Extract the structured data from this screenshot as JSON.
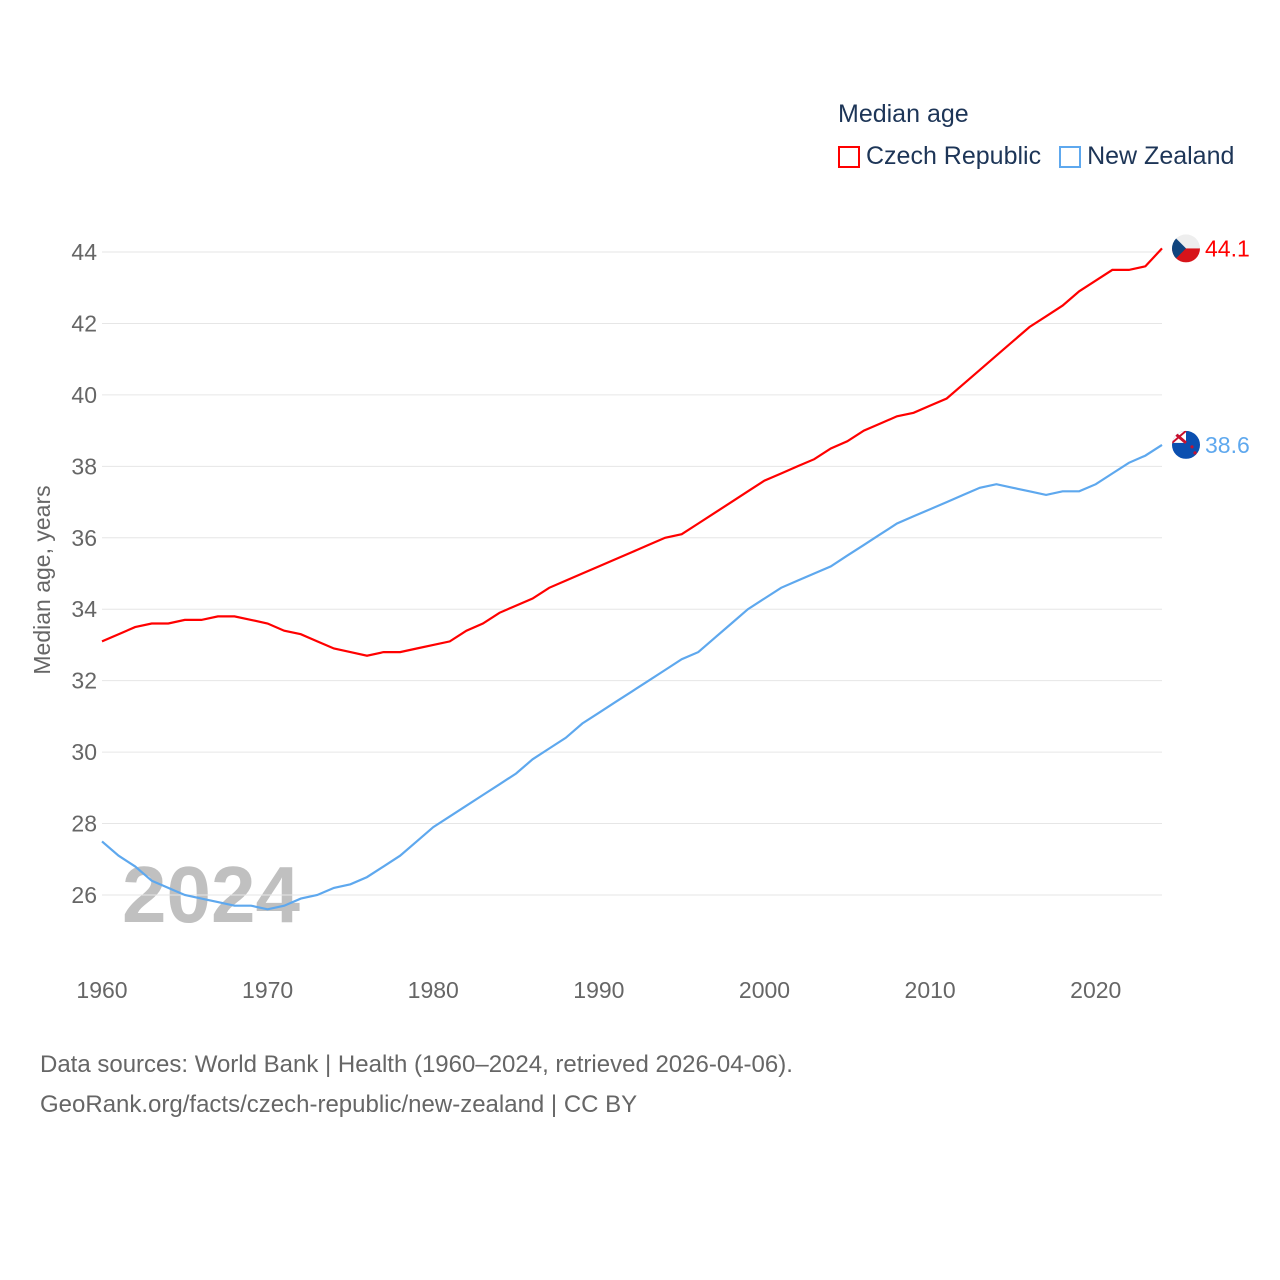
{
  "chart_data": {
    "type": "line",
    "title": "Median age",
    "xlabel": "",
    "ylabel": "Median age, years",
    "ylim": [
      25,
      44
    ],
    "xlim": [
      1960,
      2024
    ],
    "yticks": [
      26,
      28,
      30,
      32,
      34,
      36,
      38,
      40,
      42,
      44
    ],
    "xticks": [
      1960,
      1970,
      1980,
      1990,
      2000,
      2010,
      2020
    ],
    "grid": true,
    "legend_position": "top-right",
    "year_watermark": "2024",
    "x": [
      1960,
      1961,
      1962,
      1963,
      1964,
      1965,
      1966,
      1967,
      1968,
      1969,
      1970,
      1971,
      1972,
      1973,
      1974,
      1975,
      1976,
      1977,
      1978,
      1979,
      1980,
      1981,
      1982,
      1983,
      1984,
      1985,
      1986,
      1987,
      1988,
      1989,
      1990,
      1991,
      1992,
      1993,
      1994,
      1995,
      1996,
      1997,
      1998,
      1999,
      2000,
      2001,
      2002,
      2003,
      2004,
      2005,
      2006,
      2007,
      2008,
      2009,
      2010,
      2011,
      2012,
      2013,
      2014,
      2015,
      2016,
      2017,
      2018,
      2019,
      2020,
      2021,
      2022,
      2023,
      2024
    ],
    "series": [
      {
        "name": "Czech Republic",
        "color": "#ff0000",
        "end_label": "44.1",
        "values": [
          33.1,
          33.3,
          33.5,
          33.6,
          33.6,
          33.7,
          33.7,
          33.8,
          33.8,
          33.7,
          33.6,
          33.4,
          33.3,
          33.1,
          32.9,
          32.8,
          32.7,
          32.8,
          32.8,
          32.9,
          33.0,
          33.1,
          33.4,
          33.6,
          33.9,
          34.1,
          34.3,
          34.6,
          34.8,
          35.0,
          35.2,
          35.4,
          35.6,
          35.8,
          36.0,
          36.1,
          36.4,
          36.7,
          37.0,
          37.3,
          37.6,
          37.8,
          38.0,
          38.2,
          38.5,
          38.7,
          39.0,
          39.2,
          39.4,
          39.5,
          39.7,
          39.9,
          40.3,
          40.7,
          41.1,
          41.5,
          41.9,
          42.2,
          42.5,
          42.9,
          43.2,
          43.5,
          43.5,
          43.6,
          44.1
        ]
      },
      {
        "name": "New Zealand",
        "color": "#5ea8ee",
        "end_label": "38.6",
        "values": [
          27.5,
          27.1,
          26.8,
          26.4,
          26.2,
          26.0,
          25.9,
          25.8,
          25.7,
          25.7,
          25.6,
          25.7,
          25.9,
          26.0,
          26.2,
          26.3,
          26.5,
          26.8,
          27.1,
          27.5,
          27.9,
          28.2,
          28.5,
          28.8,
          29.1,
          29.4,
          29.8,
          30.1,
          30.4,
          30.8,
          31.1,
          31.4,
          31.7,
          32.0,
          32.3,
          32.6,
          32.8,
          33.2,
          33.6,
          34.0,
          34.3,
          34.6,
          34.8,
          35.0,
          35.2,
          35.5,
          35.8,
          36.1,
          36.4,
          36.6,
          36.8,
          37.0,
          37.2,
          37.4,
          37.5,
          37.4,
          37.3,
          37.2,
          37.3,
          37.3,
          37.5,
          37.8,
          38.1,
          38.3,
          38.6
        ]
      }
    ]
  },
  "source": {
    "line1": "Data sources: World Bank | Health (1960–2024, retrieved 2026-04-06).",
    "line2": "GeoRank.org/facts/czech-republic/new-zealand | CC BY"
  }
}
